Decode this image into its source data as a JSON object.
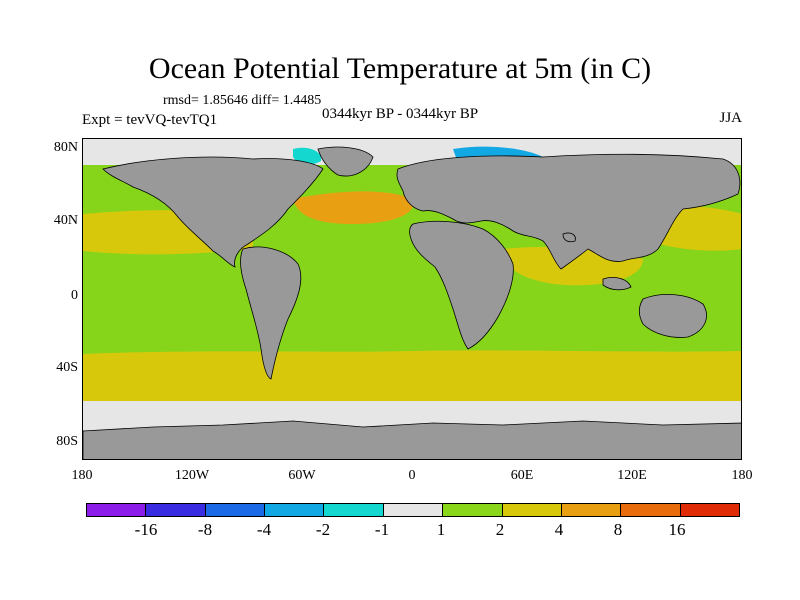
{
  "title": "Ocean Potential Temperature at 5m (in C)",
  "stats": "rmsd= 1.85646 diff= 1.4485",
  "experiment": "Expt = tevVQ-tevTQ1",
  "period": "0344kyr BP - 0344kyr BP",
  "season": "JJA",
  "map": {
    "lat_ticks": [
      "80N",
      "40N",
      "0",
      "40S",
      "80S"
    ],
    "lon_ticks": [
      "180",
      "120W",
      "60W",
      "0",
      "60E",
      "120E",
      "180"
    ],
    "colors": {
      "land": "#999999",
      "ocean_base": "#86d51a"
    }
  },
  "colorbar": {
    "labels": [
      "-16",
      "-8",
      "-4",
      "-2",
      "-1",
      "1",
      "2",
      "4",
      "8",
      "16"
    ],
    "colors": [
      "#8c1ce8",
      "#3a2ce0",
      "#1c6ae6",
      "#12a8e4",
      "#14d8d0",
      "#e6e6e6",
      "#8ad61a",
      "#d8c80c",
      "#e8a012",
      "#e86c0c",
      "#e02c06"
    ]
  }
}
